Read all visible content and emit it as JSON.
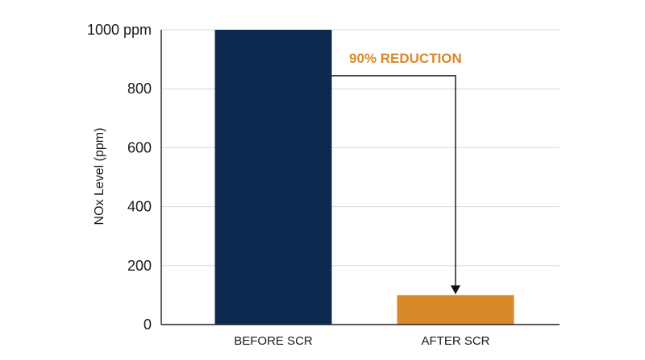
{
  "chart_data": {
    "type": "bar",
    "categories": [
      "BEFORE SCR",
      "AFTER SCR"
    ],
    "values": [
      1000,
      100
    ],
    "title": "",
    "xlabel": "",
    "ylabel": "NOx Level (ppm)",
    "ylim": [
      0,
      1000
    ],
    "yticks": [
      0,
      200,
      400,
      600,
      800,
      1000
    ],
    "ytick_labels": [
      "0",
      "200",
      "400",
      "600",
      "800",
      "1000 ppm"
    ],
    "grid": true,
    "legend": "none",
    "colors": [
      "#0c2a4f",
      "#d9882a"
    ],
    "annotation": {
      "text": "90% REDUCTION",
      "color": "#d9882a",
      "from_category": "BEFORE SCR",
      "to_category": "AFTER SCR"
    }
  }
}
